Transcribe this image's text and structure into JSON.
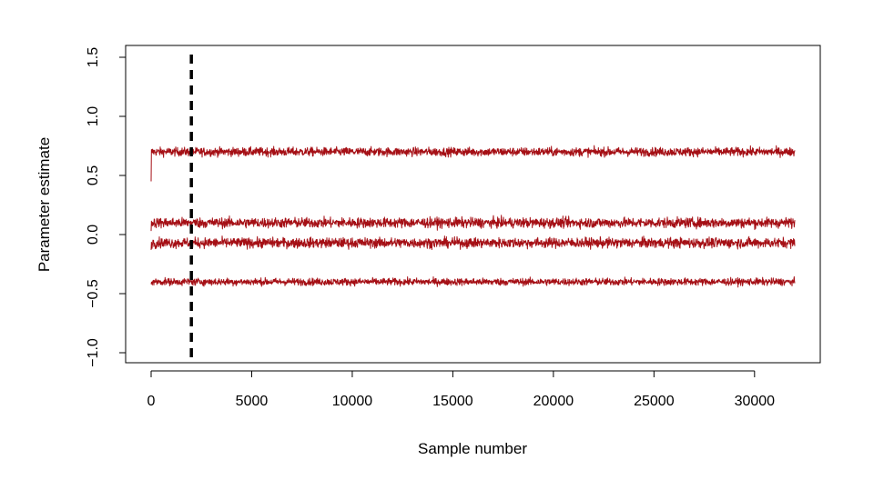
{
  "chart_data": {
    "type": "line",
    "title": "",
    "xlabel": "Sample number",
    "ylabel": "Parameter estimate",
    "xlim": [
      0,
      32000
    ],
    "ylim": [
      -1.0,
      1.5
    ],
    "x_ticks": [
      0,
      5000,
      10000,
      15000,
      20000,
      25000,
      30000
    ],
    "x_tick_labels": [
      "0",
      "5000",
      "10000",
      "15000",
      "20000",
      "25000",
      "30000"
    ],
    "y_ticks": [
      -1.0,
      -0.5,
      0.0,
      0.5,
      1.0,
      1.5
    ],
    "y_tick_labels": [
      "−1.0",
      "−0.5",
      "0.0",
      "0.5",
      "1.0",
      "1.5"
    ],
    "grid": false,
    "legend": "none",
    "series_color": "#a50f15",
    "series": [
      {
        "start_value": 0.45,
        "mean": 0.7,
        "spread": 0.03,
        "x_start": 0,
        "x_end": 32000
      },
      {
        "start_value": 0.03,
        "mean": 0.1,
        "spread": 0.035,
        "x_start": 0,
        "x_end": 32000
      },
      {
        "start_value": -0.13,
        "mean": -0.07,
        "spread": 0.035,
        "x_start": 0,
        "x_end": 32000
      },
      {
        "start_value": -0.42,
        "mean": -0.4,
        "spread": 0.025,
        "x_start": 0,
        "x_end": 32000
      }
    ],
    "burn_in": {
      "x": 2000,
      "style": "dashed",
      "color": "#000000"
    }
  }
}
